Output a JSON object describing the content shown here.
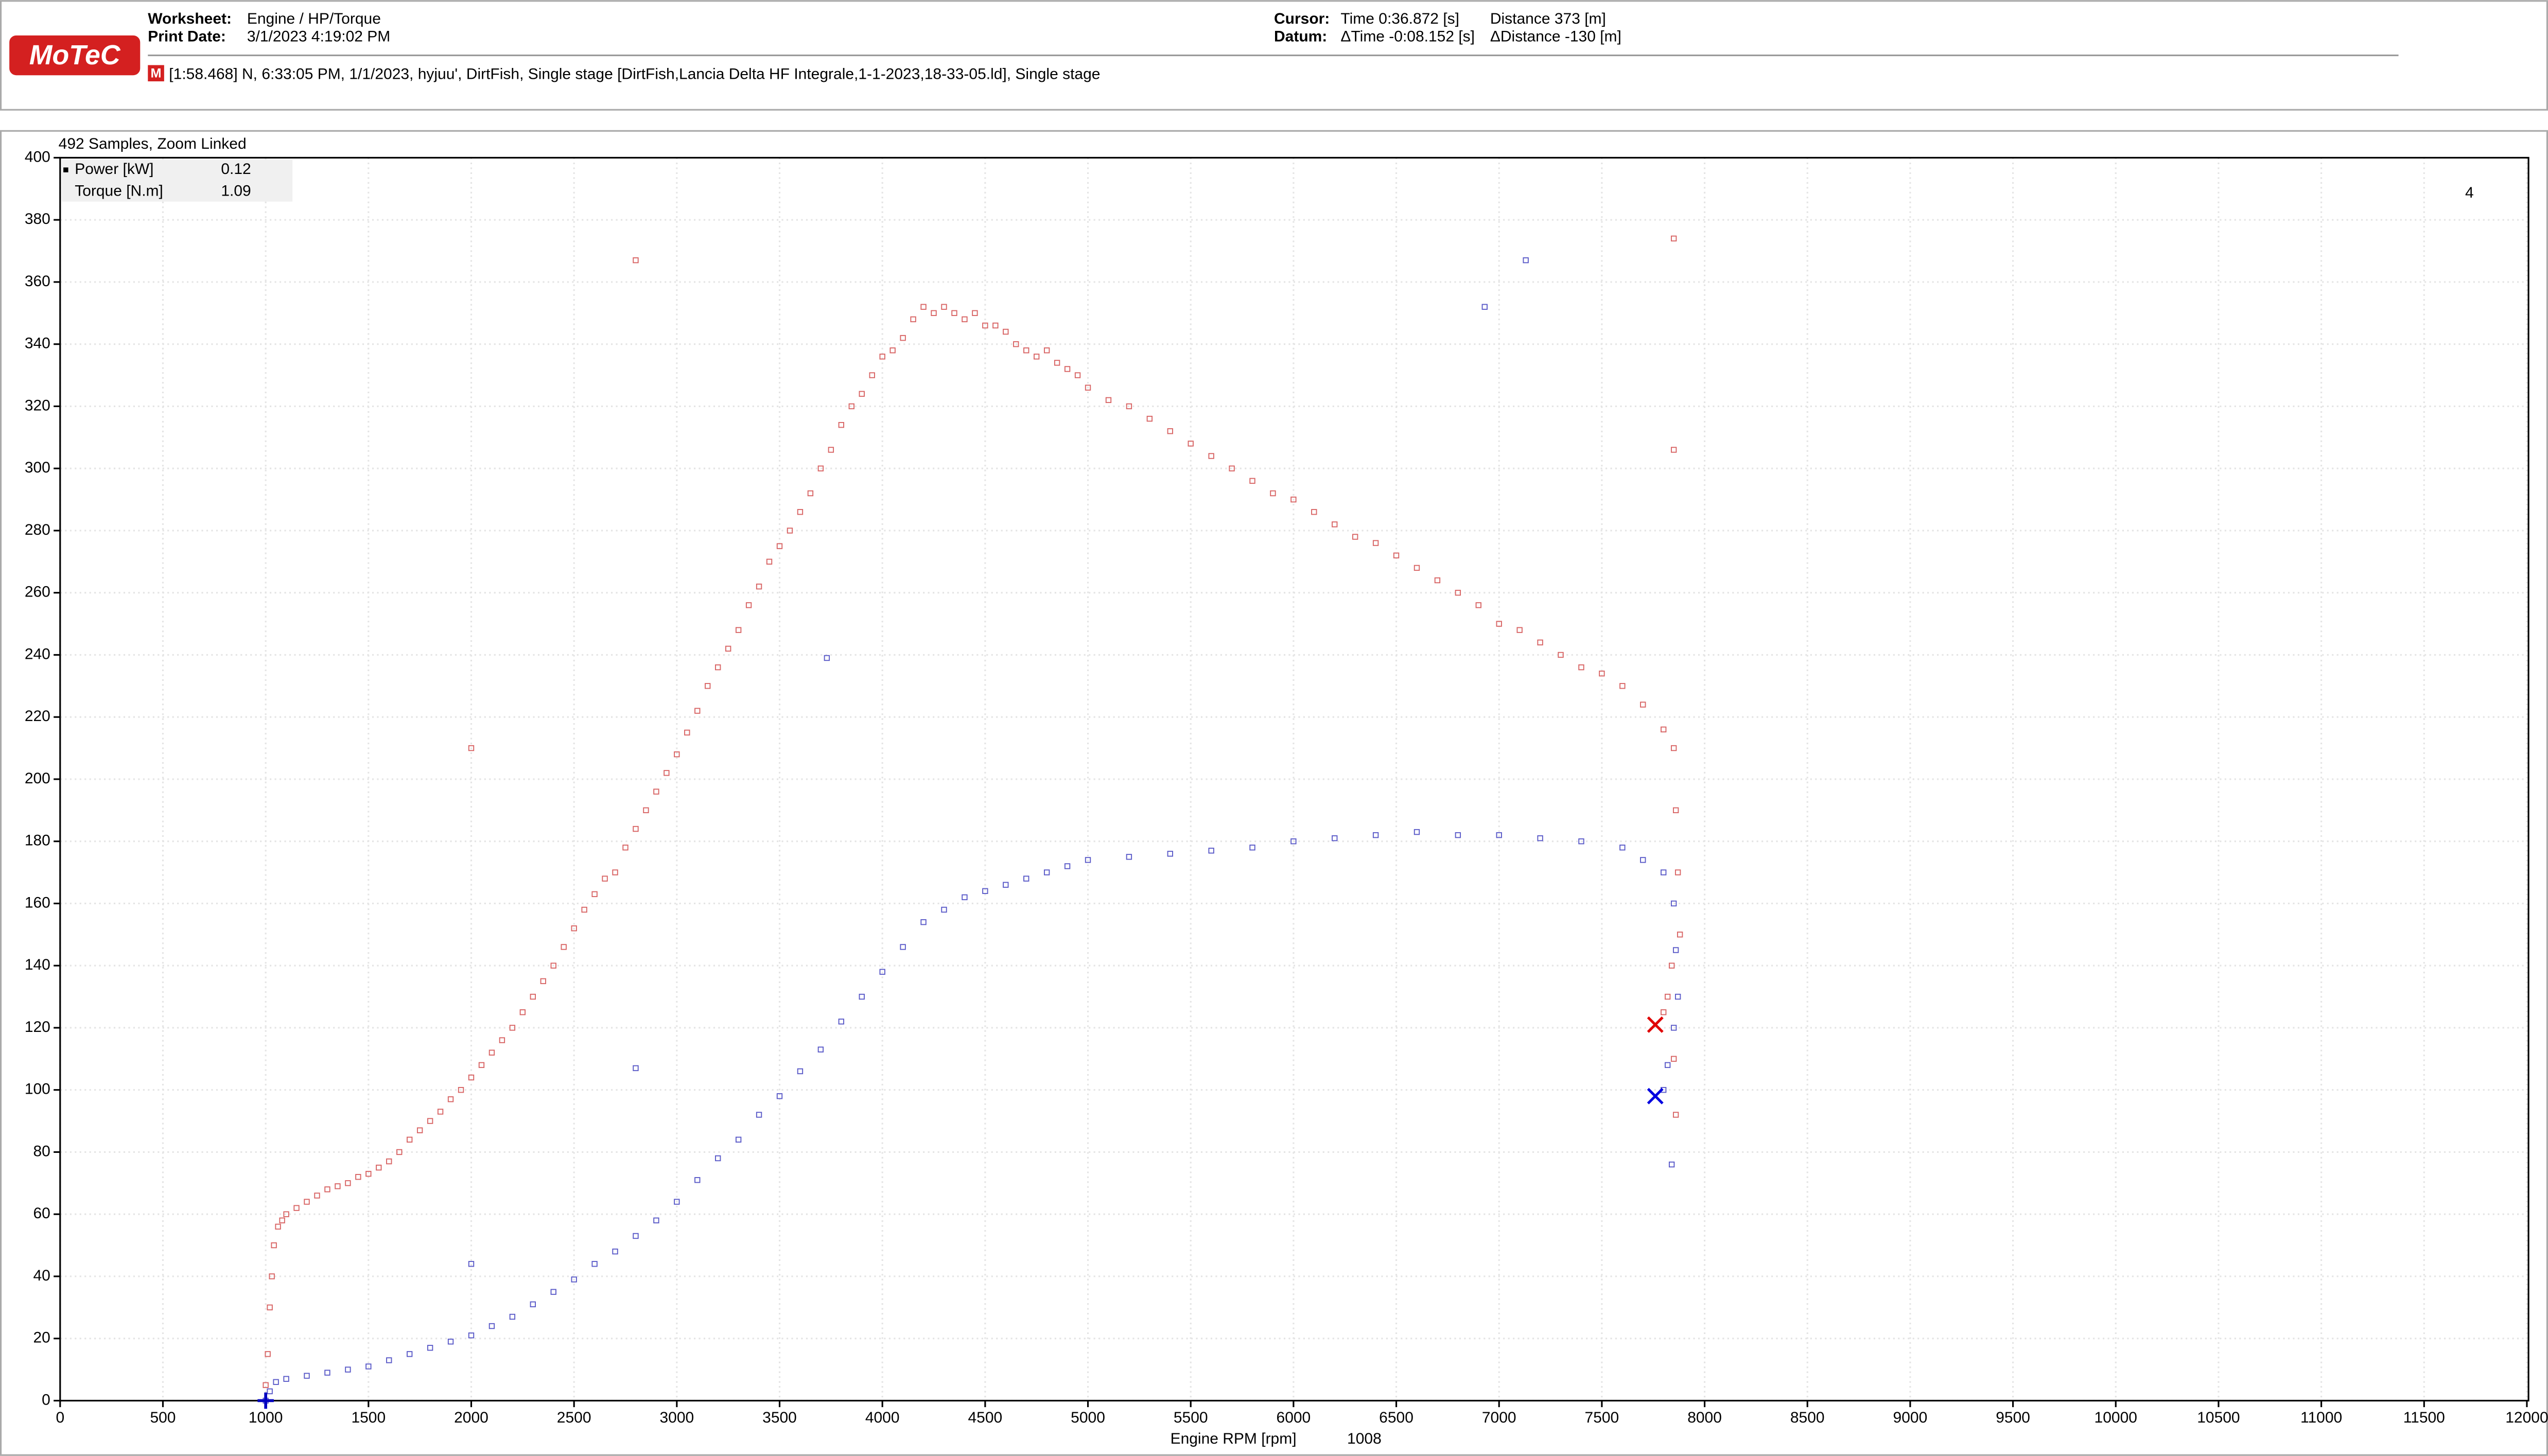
{
  "header": {
    "worksheet_label": "Worksheet:",
    "worksheet": "Engine / HP/Torque",
    "print_date_label": "Print Date:",
    "print_date": "3/1/2023 4:19:02 PM",
    "cursor_label": "Cursor:",
    "cursor_time": "Time  0:36.872 [s]",
    "cursor_distance": "Distance  373 [m]",
    "datum_label": "Datum:",
    "datum_time": "ΔTime  -0:08.152 [s]",
    "datum_distance": "ΔDistance  -130 [m]",
    "logo": "MoTeC",
    "run_icon": "M",
    "run": "[1:58.468] N, 6:33:05 PM, 1/1/2023, hyjuu', DirtFish, Single stage [DirtFish,Lancia Delta HF Integrale,1-1-2023,18-33-05.ld], Single stage"
  },
  "chart_data": {
    "type": "scatter",
    "subtitle": "492 Samples, Zoom Linked",
    "page_label": "4",
    "x_label": "Engine RPM [rpm]",
    "x_cursor_label": "1008",
    "xlim": [
      0,
      12000
    ],
    "xticks": [
      0,
      500,
      1000,
      1500,
      2000,
      2500,
      3000,
      3500,
      4000,
      4500,
      5000,
      5500,
      6000,
      6500,
      7000,
      7500,
      8000,
      8500,
      9000,
      9500,
      10000,
      10500,
      11000,
      11500,
      12000
    ],
    "ylim": [
      0,
      400
    ],
    "yticks": [
      0,
      20,
      40,
      60,
      80,
      100,
      120,
      140,
      160,
      180,
      200,
      220,
      240,
      260,
      280,
      300,
      320,
      340,
      360,
      380,
      400
    ],
    "grid": true,
    "series": [
      {
        "name": "Power [kW]",
        "color": "#5a5ac8",
        "legend_color": "#0000cc",
        "cursor_value": 0.12,
        "x": [
          1000,
          1020,
          1050,
          1100,
          1200,
          1300,
          1400,
          1500,
          1600,
          1700,
          1800,
          1900,
          2000,
          2100,
          2200,
          2300,
          2400,
          2500,
          2600,
          2700,
          2800,
          2900,
          3000,
          3100,
          3200,
          3300,
          3400,
          3500,
          3600,
          3700,
          3800,
          3900,
          4000,
          4100,
          4200,
          4300,
          4400,
          4500,
          4600,
          4700,
          4800,
          4900,
          5000,
          5200,
          5400,
          5600,
          5800,
          6000,
          6200,
          6400,
          6600,
          6800,
          7000,
          7200,
          7400,
          7600,
          7700,
          7800,
          7850,
          7860,
          7870,
          7850,
          7820,
          7800,
          7840,
          3730,
          2800,
          2000,
          6930,
          7130
        ],
        "values": [
          0,
          3,
          6,
          7,
          8,
          9,
          10,
          11,
          13,
          15,
          17,
          19,
          21,
          24,
          27,
          31,
          35,
          39,
          44,
          48,
          53,
          58,
          64,
          71,
          78,
          84,
          92,
          98,
          106,
          113,
          122,
          130,
          138,
          146,
          154,
          158,
          162,
          164,
          166,
          168,
          170,
          172,
          174,
          175,
          176,
          177,
          178,
          180,
          181,
          182,
          183,
          182,
          182,
          181,
          180,
          178,
          174,
          170,
          160,
          145,
          130,
          120,
          108,
          100,
          76,
          239,
          107,
          44,
          352,
          367
        ]
      },
      {
        "name": "Torque [N.m]",
        "color": "#d86464",
        "legend_color": "#cc0000",
        "cursor_value": 1.09,
        "x": [
          1000,
          1010,
          1020,
          1030,
          1040,
          1060,
          1080,
          1100,
          1150,
          1200,
          1250,
          1300,
          1350,
          1400,
          1450,
          1500,
          1550,
          1600,
          1650,
          1700,
          1750,
          1800,
          1850,
          1900,
          1950,
          2000,
          2050,
          2100,
          2150,
          2200,
          2250,
          2300,
          2350,
          2400,
          2450,
          2500,
          2550,
          2600,
          2650,
          2700,
          2750,
          2800,
          2850,
          2900,
          2950,
          3000,
          3050,
          3100,
          3150,
          3200,
          3250,
          3300,
          3350,
          3400,
          3450,
          3500,
          3550,
          3600,
          3650,
          3700,
          3750,
          3800,
          3850,
          3900,
          3950,
          4000,
          4050,
          4100,
          4150,
          4200,
          4250,
          4300,
          4350,
          4400,
          4450,
          4500,
          4550,
          4600,
          4650,
          4700,
          4750,
          4800,
          4850,
          4900,
          4950,
          5000,
          5100,
          5200,
          5300,
          5400,
          5500,
          5600,
          5700,
          5800,
          5900,
          6000,
          6100,
          6200,
          6300,
          6400,
          6500,
          6600,
          6700,
          6800,
          6900,
          7000,
          7100,
          7200,
          7300,
          7400,
          7500,
          7600,
          7700,
          7800,
          7850,
          7860,
          7870,
          7880,
          7840,
          7820,
          7800,
          7850,
          7860,
          2800,
          2000,
          7850,
          7850
        ],
        "values": [
          5,
          15,
          30,
          40,
          50,
          56,
          58,
          60,
          62,
          64,
          66,
          68,
          69,
          70,
          72,
          73,
          75,
          77,
          80,
          84,
          87,
          90,
          93,
          97,
          100,
          104,
          108,
          112,
          116,
          120,
          125,
          130,
          135,
          140,
          146,
          152,
          158,
          163,
          168,
          170,
          178,
          184,
          190,
          196,
          202,
          208,
          215,
          222,
          230,
          236,
          242,
          248,
          256,
          262,
          270,
          275,
          280,
          286,
          292,
          300,
          306,
          314,
          320,
          324,
          330,
          336,
          338,
          342,
          348,
          352,
          350,
          352,
          350,
          348,
          350,
          346,
          346,
          344,
          340,
          338,
          336,
          338,
          334,
          332,
          330,
          326,
          322,
          320,
          316,
          312,
          308,
          304,
          300,
          296,
          292,
          290,
          286,
          282,
          278,
          276,
          272,
          268,
          264,
          260,
          256,
          250,
          248,
          244,
          240,
          236,
          234,
          230,
          224,
          216,
          210,
          190,
          170,
          150,
          140,
          130,
          125,
          110,
          92,
          367,
          210,
          374,
          306
        ]
      }
    ],
    "cursor_markers": [
      {
        "x": 7760,
        "y": 121,
        "color": "#e00000"
      },
      {
        "x": 7760,
        "y": 98,
        "color": "#0000e0"
      }
    ],
    "origin_marker": {
      "x": 1000,
      "y": 0,
      "color": "#0000c0"
    }
  }
}
